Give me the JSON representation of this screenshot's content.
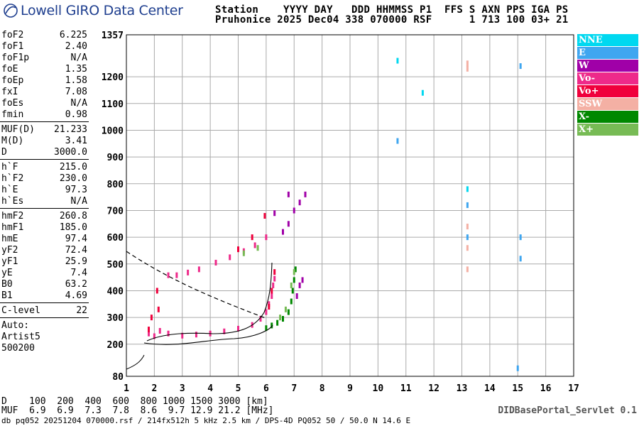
{
  "logo": {
    "text": "Lowell GIRO Data Center",
    "color": "#1f3f8f"
  },
  "header": {
    "line1": "Station    YYYY DAY   DDD HHMMSS P1  FFS S AXN PPS IGA PS",
    "line2": "Pruhonice 2025 Dec04 338 070000 RSF      1 713 100 03+ 21"
  },
  "params_a": [
    {
      "name": "foF2",
      "value": "6.225"
    },
    {
      "name": "foF1",
      "value": "2.40"
    },
    {
      "name": "foF1p",
      "value": "N/A"
    },
    {
      "name": "foE",
      "value": "1.35"
    },
    {
      "name": "foEp",
      "value": "1.58"
    },
    {
      "name": "fxI",
      "value": "7.08"
    },
    {
      "name": "foEs",
      "value": "N/A"
    },
    {
      "name": "fmin",
      "value": "0.98"
    }
  ],
  "params_b": [
    {
      "name": "MUF(D)",
      "value": "21.233"
    },
    {
      "name": "M(D)",
      "value": "3.41"
    },
    {
      "name": "D",
      "value": "3000.0"
    }
  ],
  "params_c": [
    {
      "name": "h`F",
      "value": "215.0"
    },
    {
      "name": "h`F2",
      "value": "230.0"
    },
    {
      "name": "h`E",
      "value": "97.3"
    },
    {
      "name": "h`Es",
      "value": "N/A"
    }
  ],
  "params_d": [
    {
      "name": "hmF2",
      "value": "260.8"
    },
    {
      "name": "hmF1",
      "value": "185.0"
    },
    {
      "name": "hmE",
      "value": "97.4"
    },
    {
      "name": "yF2",
      "value": "72.4"
    },
    {
      "name": "yF1",
      "value": "25.9"
    },
    {
      "name": "yE",
      "value": "7.4"
    },
    {
      "name": "B0",
      "value": "63.2"
    },
    {
      "name": "B1",
      "value": "4.69"
    }
  ],
  "params_e": [
    {
      "name": "C-level",
      "value": "22"
    }
  ],
  "auto": {
    "label": "Auto:",
    "name": "Artist5",
    "version": "500200"
  },
  "legend": [
    {
      "label": "NNE",
      "color": "#00d8f0"
    },
    {
      "label": "E",
      "color": "#3fa6f0"
    },
    {
      "label": "W",
      "color": "#a000a8"
    },
    {
      "label": "Vo-",
      "color": "#ee2a8a"
    },
    {
      "label": "Vo+",
      "color": "#f0003c"
    },
    {
      "label": "SSW",
      "color": "#f4b0a4"
    },
    {
      "label": "X-",
      "color": "#008800"
    },
    {
      "label": "X+",
      "color": "#77bb55"
    }
  ],
  "footer": {
    "d_row": "D    100  200  400  600  800 1000 1500 3000 [km]",
    "muf_row": "MUF  6.9  6.9  7.3  7.8  8.6  9.7 12.9 21.2 [MHz]",
    "db_line": "db pq052 20251204 070000.rsf / 214fx512h 5 kHz 2.5 km / DPS-4D PQ052 50 / 50.0 N 14.6 E",
    "servlet": "DIDBasePortal_Servlet 0.1"
  },
  "chart_data": {
    "type": "scatter",
    "title": "",
    "xlabel": "",
    "ylabel": "",
    "xlim": [
      1,
      17
    ],
    "ylim": [
      80,
      1357
    ],
    "x_ticks": [
      "1",
      "2",
      "3",
      "4",
      "5",
      "6",
      "7",
      "8",
      "9",
      "10",
      "11",
      "12",
      "13",
      "14",
      "15",
      "16",
      "17"
    ],
    "y_ticks": [
      "80",
      "200",
      "300",
      "400",
      "500",
      "600",
      "700",
      "800",
      "900",
      "1000",
      "1100",
      "1200",
      "1357"
    ],
    "grid": true,
    "legend_position": "right",
    "series": [
      {
        "name": "Vo-",
        "color": "#ee2a8a",
        "points": [
          [
            1.8,
            240
          ],
          [
            2.0,
            230
          ],
          [
            2.2,
            250
          ],
          [
            2.5,
            240
          ],
          [
            3.0,
            232
          ],
          [
            3.5,
            236
          ],
          [
            4.0,
            240
          ],
          [
            4.5,
            248
          ],
          [
            5.0,
            258
          ],
          [
            5.5,
            272
          ],
          [
            5.8,
            295
          ],
          [
            6.0,
            320
          ],
          [
            6.1,
            350
          ],
          [
            6.2,
            380
          ],
          [
            6.25,
            420
          ],
          [
            6.3,
            445
          ],
          [
            2.5,
            458
          ],
          [
            2.8,
            458
          ],
          [
            3.2,
            468
          ],
          [
            3.6,
            480
          ],
          [
            4.2,
            505
          ],
          [
            4.7,
            525
          ],
          [
            5.2,
            548
          ],
          [
            5.6,
            570
          ],
          [
            6.0,
            600
          ]
        ]
      },
      {
        "name": "Vo+",
        "color": "#f0003c",
        "points": [
          [
            1.8,
            255
          ],
          [
            1.9,
            300
          ],
          [
            2.1,
            400
          ],
          [
            2.15,
            330
          ],
          [
            6.1,
            340
          ],
          [
            6.2,
            400
          ],
          [
            6.3,
            470
          ],
          [
            5.0,
            555
          ],
          [
            5.5,
            600
          ],
          [
            5.95,
            680
          ]
        ]
      },
      {
        "name": "X-",
        "color": "#008800",
        "points": [
          [
            6.0,
            260
          ],
          [
            6.2,
            270
          ],
          [
            6.4,
            280
          ],
          [
            6.6,
            295
          ],
          [
            6.8,
            320
          ],
          [
            6.9,
            360
          ],
          [
            6.95,
            400
          ],
          [
            7.0,
            440
          ],
          [
            7.05,
            480
          ]
        ]
      },
      {
        "name": "X+",
        "color": "#77bb55",
        "points": [
          [
            6.5,
            300
          ],
          [
            6.7,
            330
          ],
          [
            6.9,
            420
          ],
          [
            7.0,
            470
          ],
          [
            5.2,
            540
          ],
          [
            5.7,
            560
          ]
        ]
      },
      {
        "name": "W",
        "color": "#a000a8",
        "points": [
          [
            7.1,
            380
          ],
          [
            7.2,
            420
          ],
          [
            7.3,
            440
          ],
          [
            6.6,
            620
          ],
          [
            6.8,
            650
          ],
          [
            7.0,
            700
          ],
          [
            7.2,
            730
          ],
          [
            7.4,
            760
          ],
          [
            6.3,
            690
          ],
          [
            6.8,
            760
          ]
        ]
      },
      {
        "name": "E",
        "color": "#3fa6f0",
        "points": [
          [
            13.2,
            720
          ],
          [
            13.2,
            600
          ],
          [
            15.1,
            1240
          ],
          [
            15.1,
            600
          ],
          [
            15.1,
            520
          ],
          [
            10.7,
            960
          ],
          [
            15.0,
            110
          ]
        ]
      },
      {
        "name": "NNE",
        "color": "#00d8f0",
        "points": [
          [
            13.2,
            780
          ],
          [
            10.7,
            1260
          ],
          [
            11.6,
            1140
          ]
        ]
      },
      {
        "name": "SSW",
        "color": "#f4b0a4",
        "points": [
          [
            13.2,
            1250
          ],
          [
            13.2,
            1230
          ],
          [
            13.2,
            640
          ],
          [
            13.2,
            560
          ],
          [
            13.2,
            480
          ]
        ]
      }
    ]
  }
}
